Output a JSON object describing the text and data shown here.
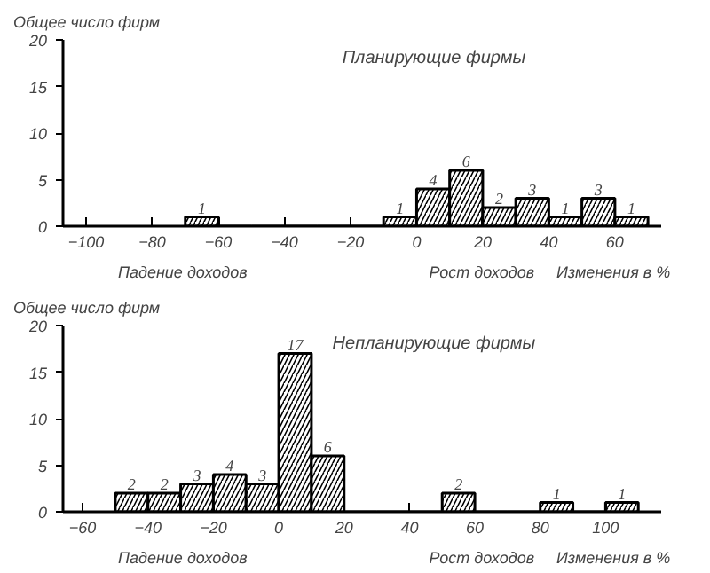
{
  "chart_data": [
    {
      "type": "histogram",
      "title": "Планирующие фирмы",
      "ylabel": "Общее число фирм",
      "xlabel": "Изменения в %",
      "annotations": [
        "Падение доходов",
        "Рост доходов"
      ],
      "bins": [
        -70,
        -60,
        -50,
        -40,
        -30,
        -20,
        -10,
        0,
        10,
        20,
        30,
        40,
        50,
        60,
        70
      ],
      "values": [
        1,
        0,
        0,
        0,
        0,
        0,
        1,
        4,
        6,
        2,
        3,
        1,
        3,
        1
      ],
      "value_labels": [
        "1",
        null,
        null,
        null,
        null,
        null,
        "1",
        "4",
        "6",
        "2",
        "3",
        "1",
        "3",
        "1"
      ],
      "color": "#000000",
      "xlim": [
        -107,
        74
      ],
      "xticks": [
        -100,
        -80,
        -60,
        -40,
        -20,
        0,
        20,
        40,
        60
      ],
      "ylim": [
        0,
        20
      ],
      "yticks": [
        0,
        5,
        10,
        15,
        20
      ],
      "grid": false
    },
    {
      "type": "histogram",
      "title": "Непланирующие фирмы",
      "ylabel": "Общее число фирм",
      "xlabel": "Изменения в %",
      "annotations": [
        "Падение доходов",
        "Рост доходов"
      ],
      "bins": [
        -50,
        -40,
        -30,
        -20,
        -10,
        0,
        10,
        20,
        30,
        40,
        50,
        60,
        70,
        80,
        90,
        100,
        110
      ],
      "values": [
        2,
        2,
        3,
        4,
        3,
        17,
        6,
        0,
        0,
        0,
        2,
        0,
        0,
        1,
        0,
        1
      ],
      "value_labels": [
        "2",
        "2",
        "3",
        "4",
        "3",
        "17",
        "6",
        null,
        null,
        null,
        "2",
        null,
        null,
        "1",
        null,
        "1"
      ],
      "color": "#000000",
      "xlim": [
        -66,
        117
      ],
      "xticks": [
        -60,
        -40,
        -20,
        0,
        20,
        40,
        60,
        80,
        100
      ],
      "ylim": [
        0,
        20
      ],
      "yticks": [
        0,
        5,
        10,
        15,
        20
      ],
      "grid": false
    }
  ]
}
